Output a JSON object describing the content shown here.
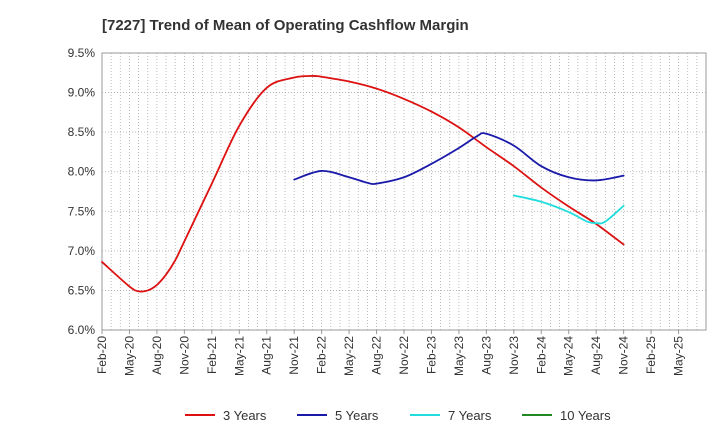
{
  "chart_data": {
    "type": "line",
    "title": "[7227]  Trend of Mean of Operating Cashflow Margin",
    "xlabel": "",
    "ylabel": "",
    "ylim": [
      6.0,
      9.5
    ],
    "y_ticks": [
      "6.0%",
      "6.5%",
      "7.0%",
      "7.5%",
      "8.0%",
      "8.5%",
      "9.0%",
      "9.5%"
    ],
    "x_ticks": [
      "Feb-20",
      "May-20",
      "Aug-20",
      "Nov-20",
      "Feb-21",
      "May-21",
      "Aug-21",
      "Nov-21",
      "Feb-22",
      "May-22",
      "Aug-22",
      "Nov-22",
      "Feb-23",
      "May-23",
      "Aug-23",
      "Nov-23",
      "Feb-24",
      "May-24",
      "Aug-24",
      "Nov-24",
      "Feb-25",
      "May-25"
    ],
    "grid": true,
    "legend_position": "bottom",
    "series": [
      {
        "name": "3 Years",
        "color": "#dd1111",
        "x": [
          "Feb-20",
          "May-20",
          "Jun-20",
          "Jul-20",
          "Aug-20",
          "Sep-20",
          "Oct-20",
          "Nov-20",
          "Feb-21",
          "May-21",
          "Aug-21",
          "Nov-21",
          "Jan-22",
          "Feb-22",
          "May-22",
          "Aug-22",
          "Nov-22",
          "Feb-23",
          "May-23",
          "Aug-23",
          "Nov-23",
          "Feb-24",
          "May-24",
          "Aug-24",
          "Nov-24"
        ],
        "y": [
          6.86,
          6.55,
          6.49,
          6.5,
          6.57,
          6.7,
          6.88,
          7.12,
          7.85,
          8.58,
          9.06,
          9.19,
          9.21,
          9.2,
          9.14,
          9.05,
          8.92,
          8.76,
          8.56,
          8.31,
          8.07,
          7.8,
          7.56,
          7.34,
          7.08
        ]
      },
      {
        "name": "5 Years",
        "color": "#1a1aaa",
        "x": [
          "Nov-21",
          "Feb-22",
          "May-22",
          "Jul-22",
          "Aug-22",
          "Nov-22",
          "Feb-23",
          "May-23",
          "Jul-23",
          "Aug-23",
          "Nov-23",
          "Feb-24",
          "May-24",
          "Aug-24",
          "Nov-24"
        ],
        "y": [
          7.9,
          8.01,
          7.93,
          7.86,
          7.85,
          7.93,
          8.1,
          8.3,
          8.45,
          8.48,
          8.33,
          8.07,
          7.93,
          7.89,
          7.95
        ]
      },
      {
        "name": "7 Years",
        "color": "#22dddd",
        "x": [
          "Nov-23",
          "Feb-24",
          "May-24",
          "Jul-24",
          "Aug-24",
          "Sep-24",
          "Nov-24"
        ],
        "y": [
          7.7,
          7.62,
          7.49,
          7.37,
          7.35,
          7.37,
          7.57
        ]
      },
      {
        "name": "10 Years",
        "color": "#228822",
        "x": [],
        "y": []
      }
    ]
  }
}
